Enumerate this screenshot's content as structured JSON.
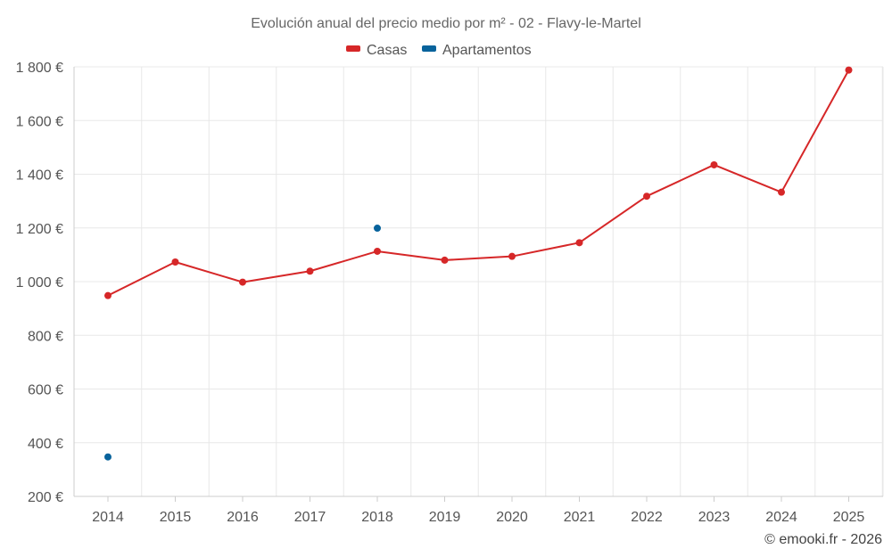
{
  "chart_data": {
    "type": "line",
    "title": "Evolución anual del precio medio por m² - 02 - Flavy-le-Martel",
    "categories": [
      "2014",
      "2015",
      "2016",
      "2017",
      "2018",
      "2019",
      "2020",
      "2021",
      "2022",
      "2023",
      "2024",
      "2025"
    ],
    "ylim": [
      200,
      1800
    ],
    "yticks": [
      200,
      400,
      600,
      800,
      1000,
      1200,
      1400,
      1600,
      1800
    ],
    "ytick_labels": [
      "200 €",
      "400 €",
      "600 €",
      "800 €",
      "1 000 €",
      "1 200 €",
      "1 400 €",
      "1 600 €",
      "1 800 €"
    ],
    "xlabel": "",
    "ylabel": "",
    "grid": true,
    "legend_position": "top-center",
    "series": [
      {
        "name": "Casas",
        "color": "#d62728",
        "values": [
          948,
          1073,
          998,
          1039,
          1113,
          1080,
          1094,
          1145,
          1318,
          1435,
          1333,
          1788
        ]
      },
      {
        "name": "Apartamentos",
        "color": "#08639c",
        "values": [
          347,
          null,
          null,
          null,
          1199,
          null,
          null,
          null,
          null,
          null,
          null,
          null
        ]
      }
    ]
  },
  "credit": "© emooki.fr - 2026"
}
